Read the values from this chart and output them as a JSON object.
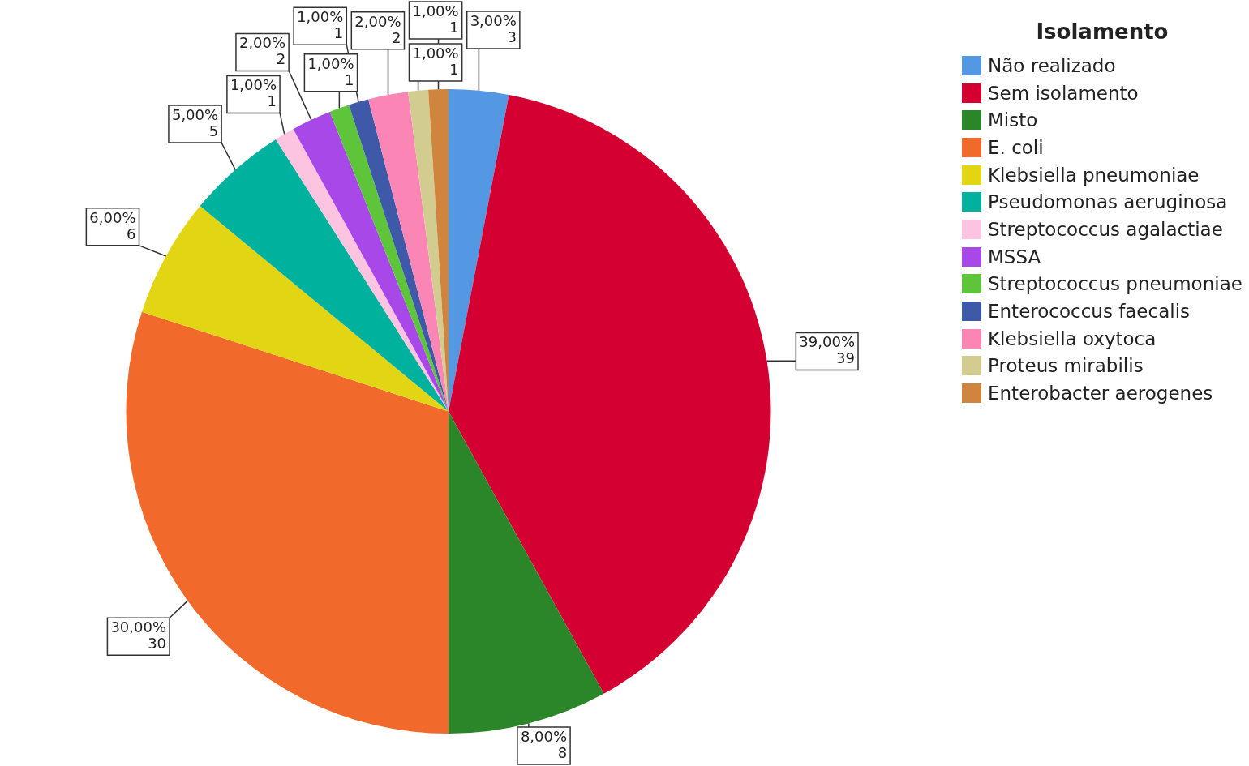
{
  "chart_data": {
    "type": "pie",
    "legend_title": "Isolamento",
    "legend": "top right",
    "categories": [
      "Não realizado",
      "Sem isolamento",
      "Misto",
      "E. coli",
      "Klebsiella pneumoniae",
      "Pseudomonas aeruginosa",
      "Streptococcus agalactiae",
      "MSSA",
      "Streptococcus pneumoniae",
      "Enterococcus faecalis",
      "Klebsiella oxytoca",
      "Proteus mirabilis",
      "Enterobacter aerogenes"
    ],
    "values": [
      3,
      39,
      8,
      30,
      6,
      5,
      1,
      2,
      1,
      1,
      2,
      1,
      1
    ],
    "colors": [
      "#5497e3",
      "#d40032",
      "#2a8629",
      "#f1692b",
      "#e2d514",
      "#00b19e",
      "#fcc4e0",
      "#a848e8",
      "#5ec43a",
      "#3d59a8",
      "#fb86b6",
      "#d3cc91",
      "#cf853e"
    ],
    "value_labels": [
      "3,00%\n3",
      "39,00%\n39",
      "8,00%\n8",
      "30,00%\n30",
      "6,00%\n6",
      "5,00%\n5",
      "1,00%\n1",
      "2,00%\n2",
      "1,00%\n1",
      "1,00%\n1",
      "2,00%\n2",
      "1,00%\n1",
      "1,00%\n1"
    ]
  }
}
